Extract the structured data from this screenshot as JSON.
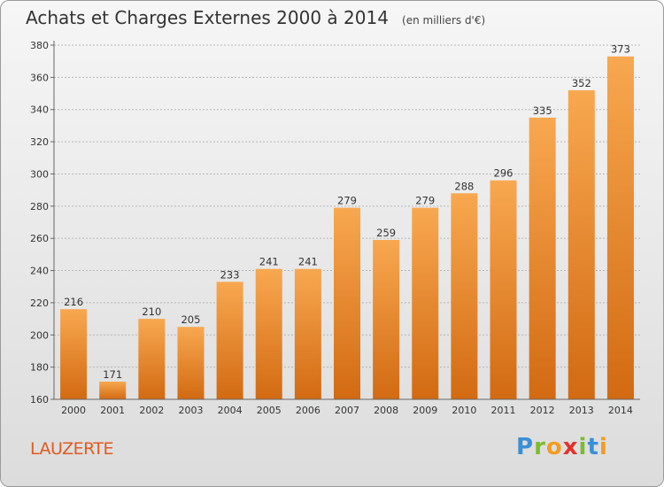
{
  "header": {
    "title": "Achats et Charges Externes 2000 à 2014",
    "unit": "(en milliers d'€)"
  },
  "footer": {
    "commune": "LAUZERTE",
    "logo": [
      "P",
      "r",
      "o",
      "x",
      "i",
      "t",
      "i"
    ],
    "logo_colors": [
      "#3a8fd8",
      "#7dbb2e",
      "#f39c1f",
      "#e2322b",
      "#7dbb2e",
      "#3a8fd8",
      "#f39c1f"
    ]
  },
  "colors": {
    "bar_top": "#f8a850",
    "bar_bottom": "#d26a12",
    "grid": "#b5b5b5"
  },
  "chart_data": {
    "type": "bar",
    "title": "Achats et Charges Externes 2000 à 2014",
    "subtitle": "(en milliers d'€)",
    "xlabel": "",
    "ylabel": "",
    "categories": [
      "2000",
      "2001",
      "2002",
      "2003",
      "2004",
      "2005",
      "2006",
      "2007",
      "2008",
      "2009",
      "2010",
      "2011",
      "2012",
      "2013",
      "2014"
    ],
    "values": [
      216,
      171,
      210,
      205,
      233,
      241,
      241,
      279,
      259,
      279,
      288,
      296,
      335,
      352,
      373
    ],
    "ylim": [
      160,
      380
    ],
    "yticks": [
      160,
      180,
      200,
      220,
      240,
      260,
      280,
      300,
      320,
      340,
      360,
      380
    ],
    "grid": "horizontal dashed",
    "legend": "none"
  }
}
